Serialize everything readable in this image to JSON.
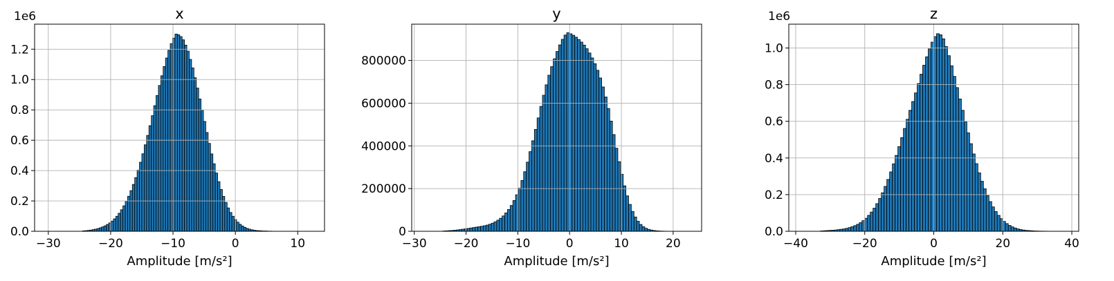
{
  "chart_data": [
    {
      "type": "bar",
      "title": "x",
      "xlabel": "Amplitude [m/s²]",
      "ylabel": "",
      "y_offset_label": "1e6",
      "xlim": [
        -32.2,
        14.3
      ],
      "ylim": [
        0,
        1.365
      ],
      "grid": true,
      "bar_color": "#1f77b4",
      "bin_width": 0.38,
      "xticks": [
        -30,
        -20,
        -10,
        0,
        10
      ],
      "xtick_labels": [
        "−30",
        "−20",
        "−10",
        "0",
        "10"
      ],
      "yticks": [
        0.0,
        0.2,
        0.4,
        0.6,
        0.8,
        1.0,
        1.2
      ],
      "ytick_labels": [
        "0.0",
        "0.2",
        "0.4",
        "0.6",
        "0.8",
        "1.0",
        "1.2"
      ],
      "x": [
        -24.5,
        -24.12,
        -23.74,
        -23.36,
        -22.98,
        -22.6,
        -22.22,
        -21.84,
        -21.46,
        -21.08,
        -20.7,
        -20.32,
        -19.94,
        -19.56,
        -19.18,
        -18.8,
        -18.42,
        -18.04,
        -17.66,
        -17.28,
        -16.9,
        -16.52,
        -16.14,
        -15.76,
        -15.38,
        -15.0,
        -14.62,
        -14.24,
        -13.86,
        -13.48,
        -13.1,
        -12.72,
        -12.34,
        -11.96,
        -11.58,
        -11.2,
        -10.82,
        -10.44,
        -10.06,
        -9.68,
        -9.3,
        -8.92,
        -8.54,
        -8.16,
        -7.78,
        -7.4,
        -7.02,
        -6.64,
        -6.26,
        -5.88,
        -5.5,
        -5.12,
        -4.74,
        -4.36,
        -3.98,
        -3.6,
        -3.22,
        -2.84,
        -2.46,
        -2.08,
        -1.7,
        -1.32,
        -0.94,
        -0.56,
        -0.18,
        0.2,
        0.58,
        0.96,
        1.34,
        1.72,
        2.1,
        2.48,
        2.86,
        3.24,
        3.62,
        4.0,
        4.38,
        4.76,
        5.14,
        5.52
      ],
      "values": [
        0.003,
        0.004,
        0.006,
        0.008,
        0.011,
        0.014,
        0.018,
        0.023,
        0.029,
        0.036,
        0.045,
        0.055,
        0.067,
        0.082,
        0.099,
        0.119,
        0.142,
        0.168,
        0.198,
        0.231,
        0.268,
        0.309,
        0.354,
        0.403,
        0.455,
        0.511,
        0.57,
        0.632,
        0.696,
        0.762,
        0.828,
        0.895,
        0.961,
        1.025,
        1.086,
        1.142,
        1.193,
        1.237,
        1.273,
        1.3,
        1.295,
        1.283,
        1.262,
        1.227,
        1.187,
        1.133,
        1.077,
        1.012,
        0.944,
        0.872,
        0.798,
        0.724,
        0.651,
        0.579,
        0.51,
        0.445,
        0.384,
        0.327,
        0.276,
        0.23,
        0.19,
        0.154,
        0.124,
        0.099,
        0.077,
        0.06,
        0.046,
        0.035,
        0.026,
        0.019,
        0.014,
        0.01,
        0.007,
        0.005,
        0.004,
        0.003,
        0.002,
        0.002,
        0.001,
        0.001
      ]
    },
    {
      "type": "bar",
      "title": "y",
      "xlabel": "Amplitude [m/s²]",
      "ylabel": "",
      "y_offset_label": "",
      "xlim": [
        -30.5,
        25.5
      ],
      "ylim": [
        0,
        970000
      ],
      "grid": true,
      "bar_color": "#1f77b4",
      "bin_width": 0.52,
      "xticks": [
        -30,
        -20,
        -10,
        0,
        10,
        20
      ],
      "xtick_labels": [
        "−30",
        "−20",
        "−10",
        "0",
        "10",
        "20"
      ],
      "yticks": [
        0,
        200000,
        400000,
        600000,
        800000
      ],
      "ytick_labels": [
        "0",
        "200000",
        "400000",
        "600000",
        "800000"
      ],
      "x": [
        -24.48,
        -23.96,
        -23.44,
        -22.92,
        -22.4,
        -21.88,
        -21.36,
        -20.84,
        -20.32,
        -19.8,
        -19.28,
        -18.76,
        -18.24,
        -17.72,
        -17.2,
        -16.68,
        -16.16,
        -15.64,
        -15.12,
        -14.6,
        -14.08,
        -13.56,
        -13.04,
        -12.52,
        -12.0,
        -11.48,
        -10.96,
        -10.44,
        -9.92,
        -9.4,
        -8.88,
        -8.36,
        -7.84,
        -7.32,
        -6.8,
        -6.28,
        -5.76,
        -5.24,
        -4.72,
        -4.2,
        -3.68,
        -3.16,
        -2.64,
        -2.12,
        -1.6,
        -1.08,
        -0.56,
        -0.04,
        0.48,
        1.0,
        1.52,
        2.04,
        2.56,
        3.08,
        3.6,
        4.12,
        4.64,
        5.16,
        5.68,
        6.2,
        6.72,
        7.24,
        7.76,
        8.28,
        8.8,
        9.32,
        9.84,
        10.36,
        10.88,
        11.4,
        11.92,
        12.44,
        12.96,
        13.48,
        14.0,
        14.52,
        15.04,
        15.56,
        16.08,
        16.6,
        17.12,
        17.64,
        18.16,
        18.68,
        19.2,
        19.72,
        20.24,
        20.76
      ],
      "values": [
        1500,
        2200,
        3000,
        4000,
        5200,
        6500,
        8000,
        9800,
        11500,
        13500,
        15500,
        17500,
        19500,
        21500,
        23500,
        26000,
        29000,
        33000,
        38000,
        44500,
        52000,
        61000,
        72000,
        86000,
        102000,
        121000,
        144000,
        171000,
        202000,
        238000,
        279000,
        324000,
        373000,
        424000,
        477000,
        531000,
        585000,
        637000,
        686000,
        731000,
        771000,
        808000,
        842000,
        873000,
        899000,
        919000,
        930000,
        925000,
        918000,
        909000,
        898000,
        886000,
        872000,
        855000,
        835000,
        812000,
        785000,
        754000,
        718000,
        676000,
        629000,
        575000,
        516000,
        453000,
        389000,
        326000,
        267000,
        213000,
        166000,
        126000,
        93000,
        67000,
        47000,
        32000,
        21500,
        14000,
        9000,
        5800,
        3700,
        2300,
        1400,
        900,
        550,
        330,
        200,
        120,
        70,
        40
      ]
    },
    {
      "type": "bar",
      "title": "z",
      "xlabel": "Amplitude [m/s²]",
      "ylabel": "",
      "y_offset_label": "1e6",
      "xlim": [
        -42,
        42
      ],
      "ylim": [
        0,
        1.13
      ],
      "grid": true,
      "bar_color": "#1f77b4",
      "bin_width": 0.8,
      "xticks": [
        -40,
        -20,
        0,
        20,
        40
      ],
      "xtick_labels": [
        "−40",
        "−20",
        "0",
        "20",
        "40"
      ],
      "yticks": [
        0.0,
        0.2,
        0.4,
        0.6,
        0.8,
        1.0
      ],
      "ytick_labels": [
        "0.0",
        "0.2",
        "0.4",
        "0.6",
        "0.8",
        "1.0"
      ],
      "x": [
        -32.8,
        -32.0,
        -31.2,
        -30.4,
        -29.6,
        -28.8,
        -28.0,
        -27.2,
        -26.4,
        -25.6,
        -24.8,
        -24.0,
        -23.2,
        -22.4,
        -21.6,
        -20.8,
        -20.0,
        -19.2,
        -18.4,
        -17.6,
        -16.8,
        -16.0,
        -15.2,
        -14.4,
        -13.6,
        -12.8,
        -12.0,
        -11.2,
        -10.4,
        -9.6,
        -8.8,
        -8.0,
        -7.2,
        -6.4,
        -5.6,
        -4.8,
        -4.0,
        -3.2,
        -2.4,
        -1.6,
        -0.8,
        0.0,
        0.8,
        1.6,
        2.4,
        3.2,
        4.0,
        4.8,
        5.6,
        6.4,
        7.2,
        8.0,
        8.8,
        9.6,
        10.4,
        11.2,
        12.0,
        12.8,
        13.6,
        14.4,
        15.2,
        16.0,
        16.8,
        17.6,
        18.4,
        19.2,
        20.0,
        20.8,
        21.6,
        22.4,
        23.2,
        24.0,
        24.8,
        25.6,
        26.4,
        27.2,
        28.0,
        28.8,
        29.6,
        30.4,
        31.2,
        32.0,
        32.8,
        33.6
      ],
      "values": [
        0.002,
        0.003,
        0.004,
        0.005,
        0.006,
        0.007,
        0.009,
        0.011,
        0.013,
        0.016,
        0.02,
        0.025,
        0.031,
        0.038,
        0.047,
        0.058,
        0.071,
        0.087,
        0.105,
        0.126,
        0.151,
        0.179,
        0.21,
        0.245,
        0.283,
        0.324,
        0.368,
        0.414,
        0.462,
        0.511,
        0.561,
        0.611,
        0.66,
        0.708,
        0.755,
        0.806,
        0.857,
        0.906,
        0.952,
        0.995,
        1.032,
        1.062,
        1.078,
        1.072,
        1.05,
        1.008,
        0.958,
        0.903,
        0.845,
        0.784,
        0.722,
        0.66,
        0.598,
        0.537,
        0.478,
        0.422,
        0.369,
        0.319,
        0.273,
        0.232,
        0.195,
        0.162,
        0.133,
        0.108,
        0.087,
        0.069,
        0.054,
        0.042,
        0.032,
        0.024,
        0.018,
        0.013,
        0.01,
        0.007,
        0.005,
        0.004,
        0.003,
        0.002,
        0.0015,
        0.001,
        0.0008,
        0.0006,
        0.0004,
        0.0003
      ]
    }
  ]
}
